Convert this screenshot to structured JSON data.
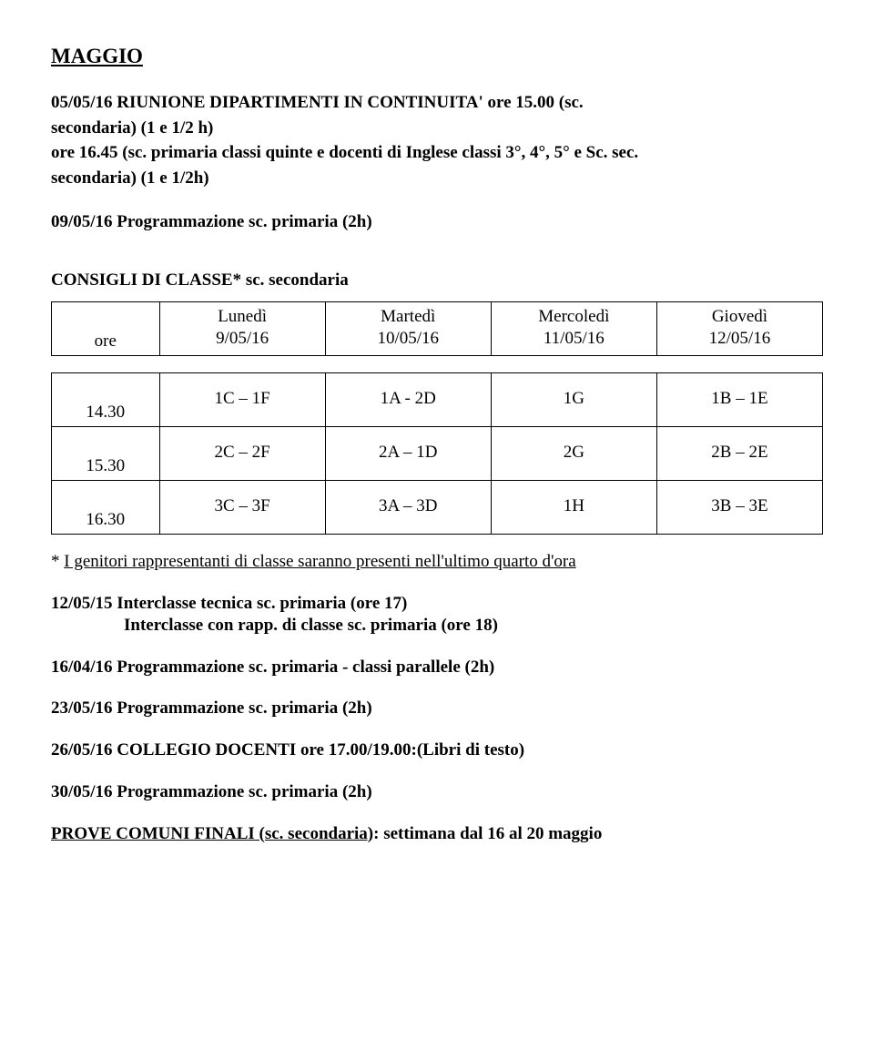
{
  "heading": "MAGGIO",
  "p1": {
    "line1_a": "05/05/16  RIUNIONE DIPARTIMENTI IN CONTINUITA' ore 15.00 (sc.",
    "line1_b": "secondaria) (1 e 1/2 h)",
    "line2_a": "ore 16.45 (sc. primaria classi quinte e docenti di Inglese classi 3°, 4°, 5° e Sc. sec.",
    "line2_b": "secondaria)  (1 e 1/2h)"
  },
  "p2": "09/05/16  Programmazione sc. primaria (2h)",
  "consigli_heading": "CONSIGLI  DI  CLASSE* sc. secondaria",
  "table_header": {
    "ore": "ore",
    "lun_a": "Lunedì",
    "lun_b": "9/05/16",
    "mar_a": "Martedì",
    "mar_b": "10/05/16",
    "mer_a": "Mercoledì",
    "mer_b": "11/05/16",
    "gio_a": "Giovedì",
    "gio_b": "12/05/16"
  },
  "rows": [
    {
      "ore": "14.30",
      "c1": "1C – 1F",
      "c2": "1A - 2D",
      "c3": "1G",
      "c4": "1B – 1E"
    },
    {
      "ore": "15.30",
      "c1": "2C – 2F",
      "c2": "2A – 1D",
      "c3": "2G",
      "c4": "2B – 2E"
    },
    {
      "ore": "16.30",
      "c1": "3C – 3F",
      "c2": "3A – 3D",
      "c3": "1H",
      "c4": "3B – 3E"
    }
  ],
  "table_note_a": "*   ",
  "table_note_b": "I genitori rappresentanti di classe saranno presenti nell'ultimo quarto d'ora",
  "p3a": "12/05/15  Interclasse tecnica sc. primaria (ore 17)",
  "p3b": "Interclasse con rapp. di classe sc. primaria (ore 18)",
  "p4": "16/04/16  Programmazione sc. primaria - classi parallele (2h)",
  "p5": "23/05/16  Programmazione sc. primaria (2h)",
  "p6": "26/05/16   COLLEGIO DOCENTI ore 17.00/19.00:(Libri di testo)",
  "p7": "30/05/16  Programmazione sc. primaria (2h)",
  "p8a": "PROVE COMUNI FINALI (sc. secondaria)",
  "p8b": ": settimana dal 16 al 20 maggio"
}
